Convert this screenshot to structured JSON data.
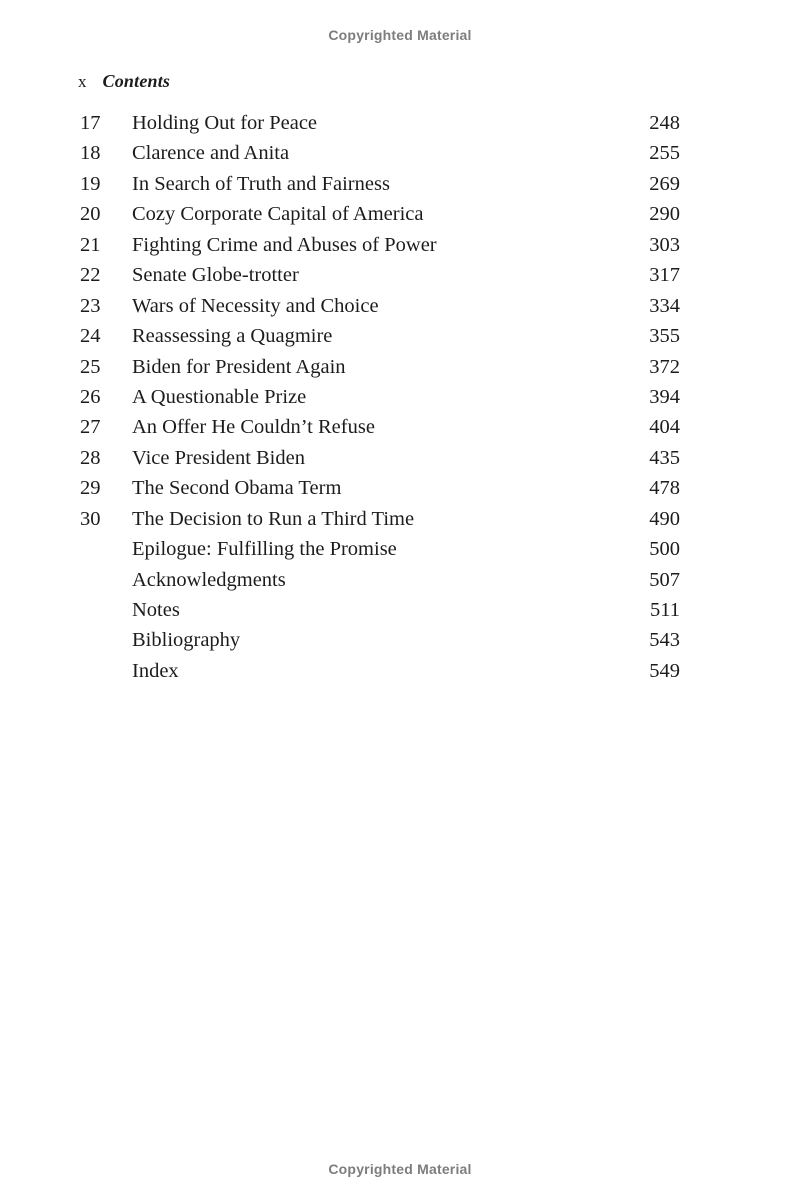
{
  "page": {
    "copyright_top": "Copyrighted Material",
    "copyright_bottom": "Copyrighted Material",
    "folio": "x",
    "running_head": "Contents"
  },
  "toc": {
    "entries": [
      {
        "num": "17",
        "title": "Holding Out for Peace",
        "page": "248"
      },
      {
        "num": "18",
        "title": "Clarence and Anita",
        "page": "255"
      },
      {
        "num": "19",
        "title": "In Search of Truth and Fairness",
        "page": "269"
      },
      {
        "num": "20",
        "title": "Cozy Corporate Capital of America",
        "page": "290"
      },
      {
        "num": "21",
        "title": "Fighting Crime and Abuses of Power",
        "page": "303"
      },
      {
        "num": "22",
        "title": "Senate Globe-trotter",
        "page": "317"
      },
      {
        "num": "23",
        "title": "Wars of Necessity and Choice",
        "page": "334"
      },
      {
        "num": "24",
        "title": "Reassessing a Quagmire",
        "page": "355"
      },
      {
        "num": "25",
        "title": "Biden for President Again",
        "page": "372"
      },
      {
        "num": "26",
        "title": "A Questionable Prize",
        "page": "394"
      },
      {
        "num": "27",
        "title": "An Offer He Couldn’t Refuse",
        "page": "404"
      },
      {
        "num": "28",
        "title": "Vice President Biden",
        "page": "435"
      },
      {
        "num": "29",
        "title": "The Second Obama Term",
        "page": "478"
      },
      {
        "num": "30",
        "title": "The Decision to Run a Third Time",
        "page": "490"
      },
      {
        "num": "",
        "title": "Epilogue: Fulfilling the Promise",
        "page": "500"
      },
      {
        "num": "",
        "title": "Acknowledgments",
        "page": "507"
      },
      {
        "num": "",
        "title": "Notes",
        "page": "511"
      },
      {
        "num": "",
        "title": "Bibliography",
        "page": "543"
      },
      {
        "num": "",
        "title": "Index",
        "page": "549"
      }
    ]
  }
}
